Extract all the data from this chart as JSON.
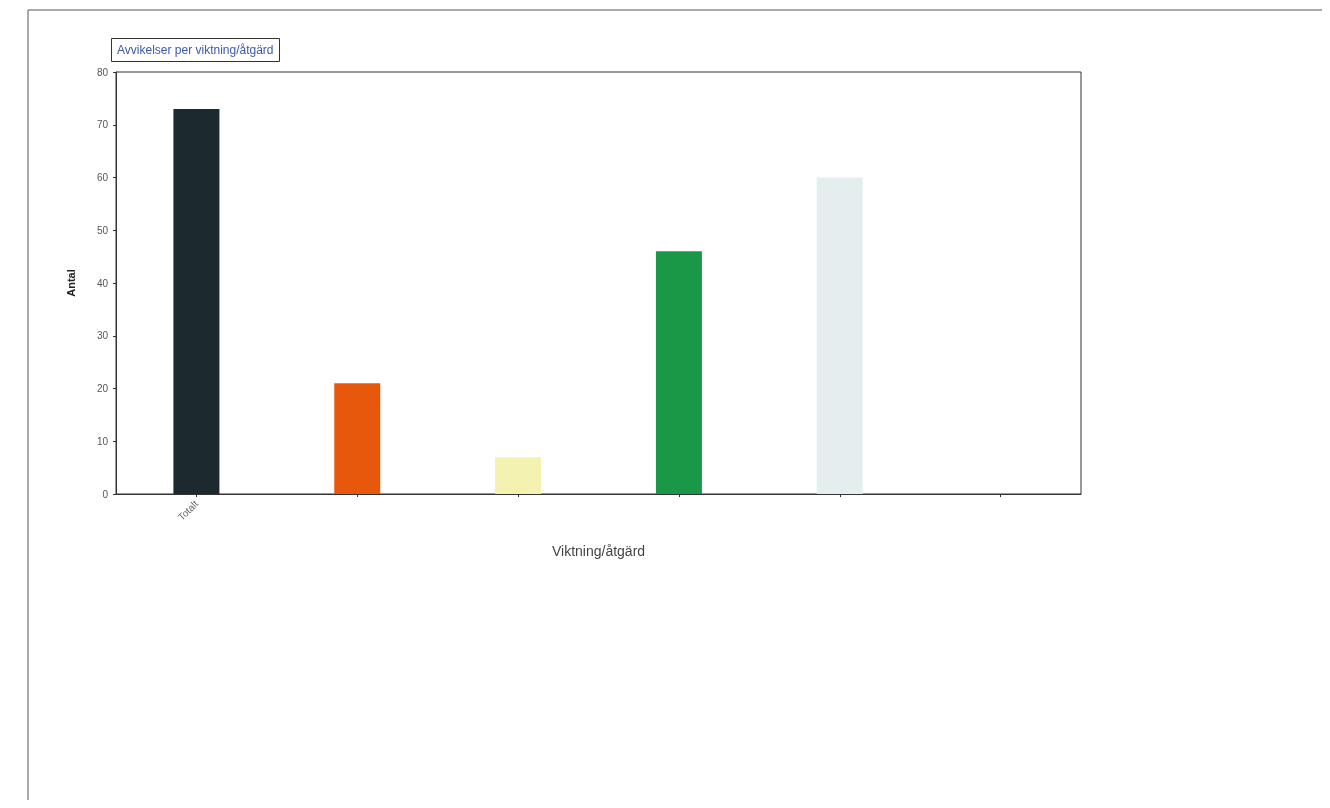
{
  "chart_data": {
    "type": "bar",
    "title": "Avvikelser per viktning/åtgärd",
    "xlabel": "Viktning/åtgärd",
    "ylabel": "Antal",
    "categories": [
      "Totalt",
      null,
      null,
      null,
      null,
      null
    ],
    "values": [
      73,
      21,
      7,
      46,
      60,
      0
    ],
    "colors": [
      "#1c2a30",
      "#e8580c",
      "#f4f2b0",
      "#1a9848",
      "#e4eeee",
      "#cccccc"
    ],
    "ylim": [
      0,
      80
    ],
    "yticks": [
      0,
      10,
      20,
      30,
      40,
      50,
      60,
      70,
      80
    ],
    "grid": false
  }
}
